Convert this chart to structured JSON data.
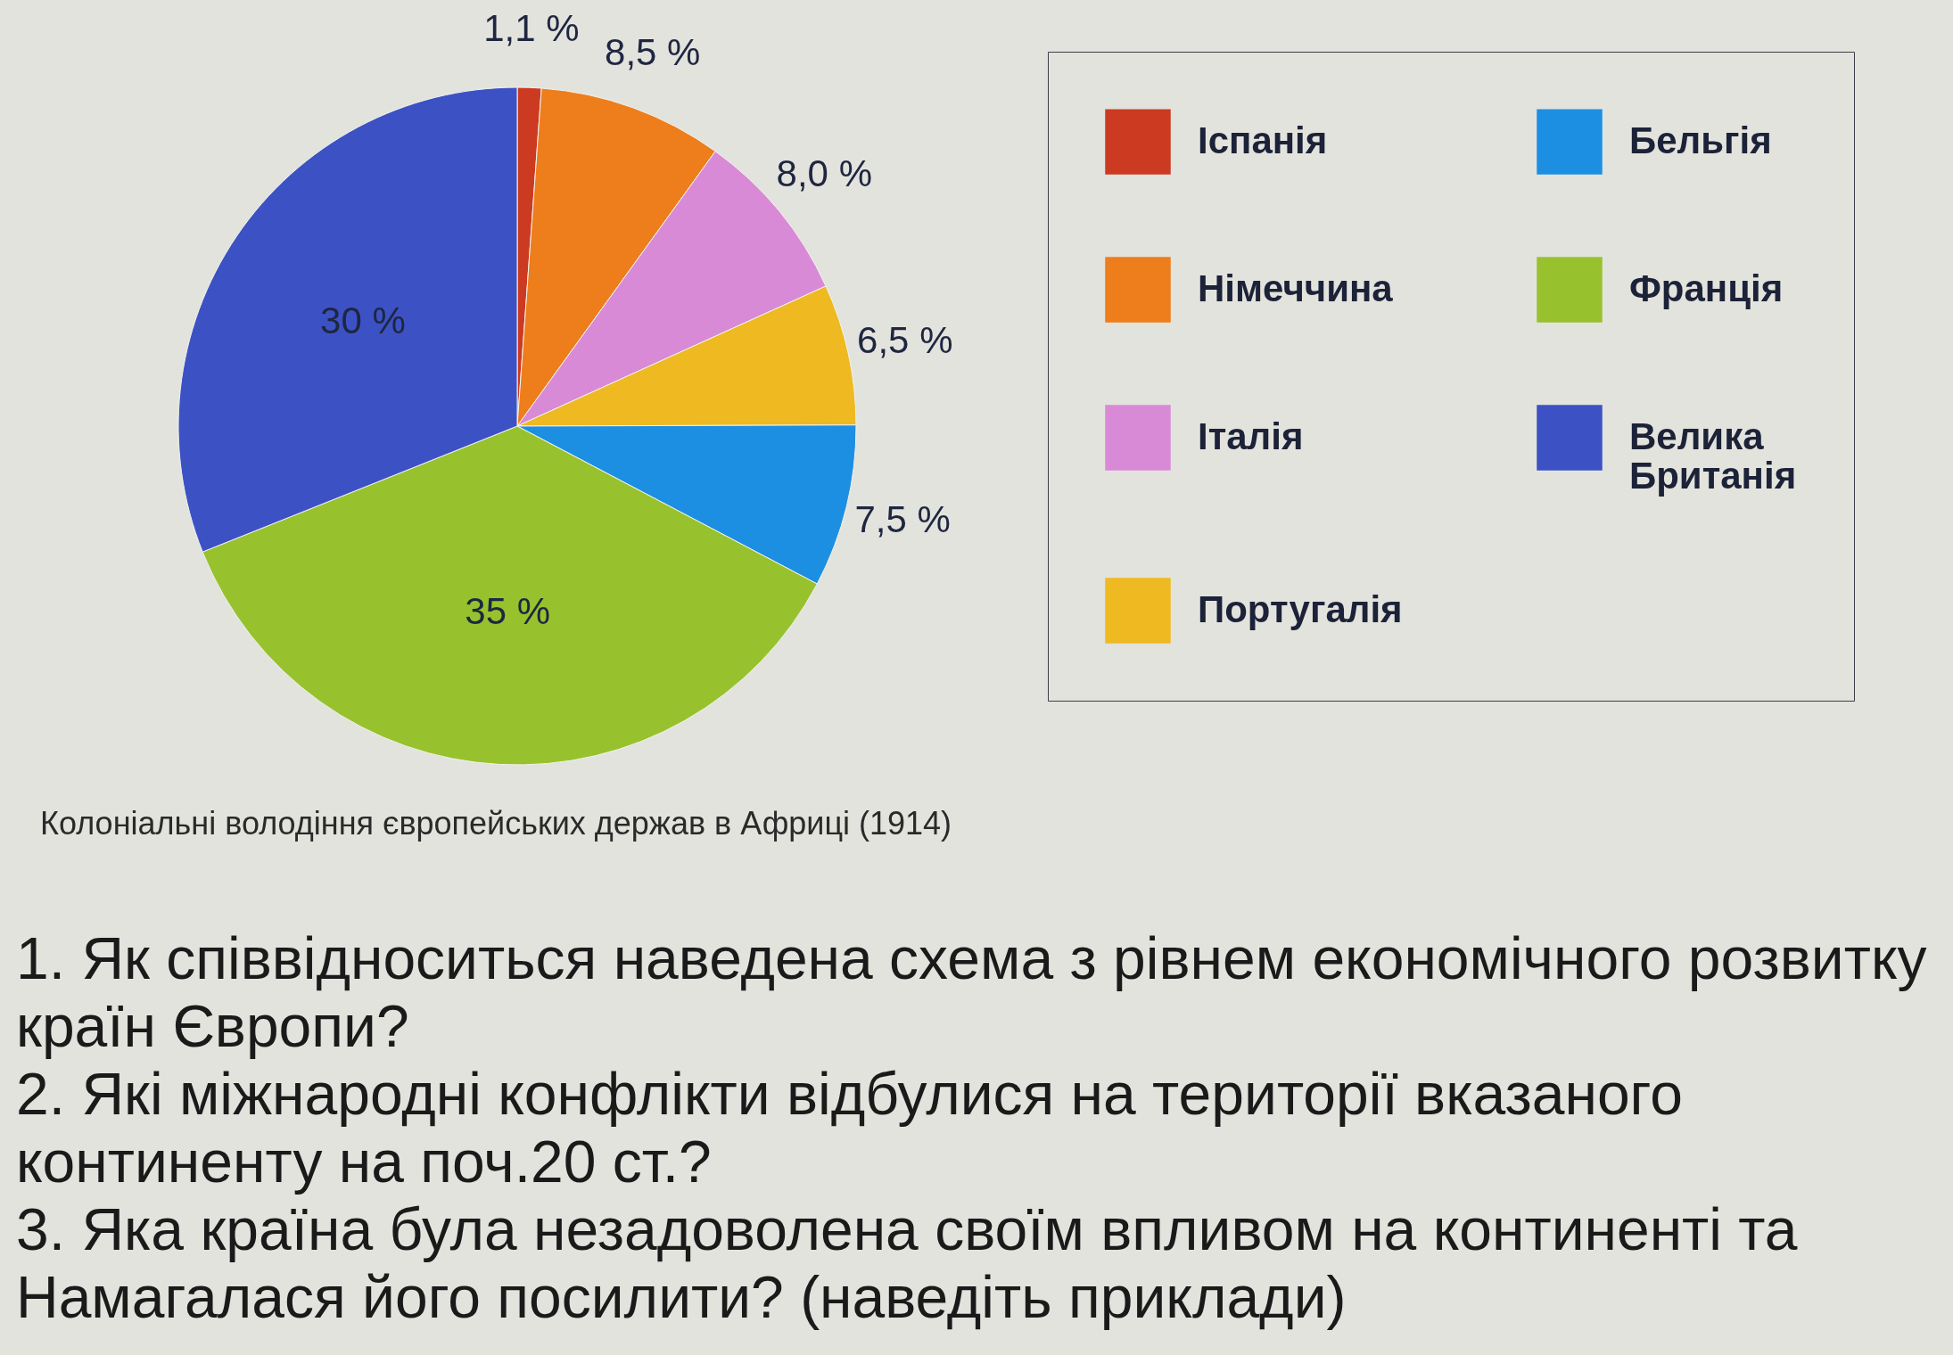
{
  "chart_data": {
    "type": "pie",
    "title": "Колоніальні володіння європейських держав в Африці (1914)",
    "categories": [
      "Іспанія",
      "Німеччина",
      "Італія",
      "Португалія",
      "Бельгія",
      "Франція",
      "Велика Британія"
    ],
    "values": [
      1.1,
      8.5,
      8.0,
      6.5,
      7.5,
      35,
      30
    ],
    "value_labels": [
      "1,1 %",
      "8,5 %",
      "8,0 %",
      "6,5 %",
      "7,5 %",
      "35 %",
      "30 %"
    ],
    "colors": [
      "#cc3a22",
      "#ee7d1c",
      "#d98ad6",
      "#eeb921",
      "#1d8fe3",
      "#97c22e",
      "#3c52c4"
    ],
    "legend": "right",
    "annotations": [
      "1. Як співвідноситься наведена схема з рівнем економічного розвитку країн Європи?",
      "2. Які міжнародні конфлікти відбулися на території вказаного континенту на поч.20 ст.?",
      "3. Яка країна була незадоволена своїм впливом на континенті та Намагалася його посилити? (наведіть приклади)"
    ]
  }
}
